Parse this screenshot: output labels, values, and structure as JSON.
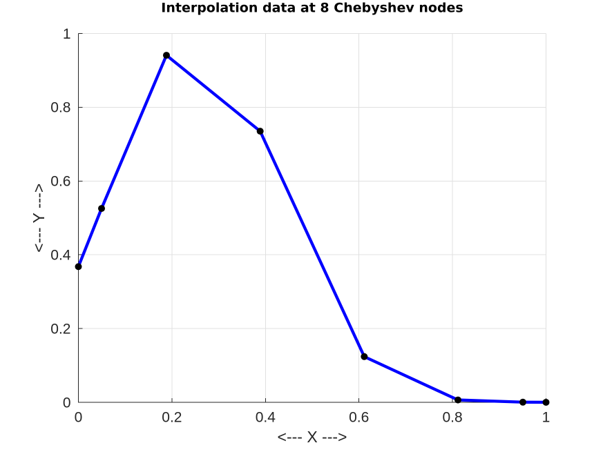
{
  "chart_data": {
    "type": "line",
    "title": "Interpolation data at 8 Chebyshev nodes",
    "xlabel": "<--- X --->",
    "ylabel": "<--- Y --->",
    "x": [
      0,
      0.0495,
      0.1883,
      0.3887,
      0.6113,
      0.8117,
      0.9505,
      1
    ],
    "y": [
      0.3679,
      0.5256,
      0.9409,
      0.735,
      0.1239,
      0.0064,
      0.0004,
      0.0001
    ],
    "xlim": [
      0,
      1
    ],
    "ylim": [
      0,
      1
    ],
    "xticks": [
      0,
      0.2,
      0.4,
      0.6,
      0.8,
      1
    ],
    "yticks": [
      0,
      0.2,
      0.4,
      0.6,
      0.8,
      1
    ],
    "grid": true,
    "legend_position": "none",
    "line_color": "#0000ff",
    "line_width": 4.3,
    "marker": "o",
    "marker_color": "#000000",
    "marker_radius": 5,
    "axis_color": "#262626",
    "grid_color": "#e0e0e0",
    "background_color": "#ffffff"
  }
}
